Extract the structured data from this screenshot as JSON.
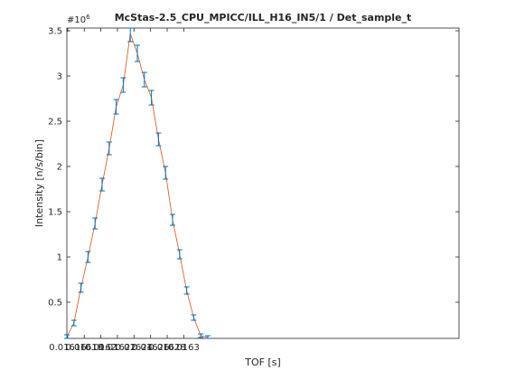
{
  "chart_data": {
    "type": "line",
    "title": "McStas-2.5_CPU_MPICC/ILL_H16_IN5/1 / Det_sample_t",
    "xlabel": "TOF [s]",
    "ylabel": "Intensity [n/s/bin]",
    "y_exponent_label": "#10",
    "y_exponent_power": "6",
    "y_scale": 1000000,
    "xlim": [
      0.016159,
      0.016632
    ],
    "ylim": [
      0.1,
      3.53
    ],
    "x_ticks": [
      0.01616,
      0.01618,
      0.0162,
      0.01622,
      0.01624,
      0.01626,
      0.01628,
      0.0163
    ],
    "x_tick_labels": [
      "0.01616",
      "0.01618",
      "0.0162",
      "0.01622",
      "0.01624",
      "0.01626",
      "0.01628",
      "0.0163"
    ],
    "y_ticks": [
      0.5,
      1,
      1.5,
      2,
      2.5,
      3,
      3.5
    ],
    "y_tick_labels": [
      "0.5",
      "1",
      "1.5",
      "2",
      "2.5",
      "3",
      "3.5"
    ],
    "grid": false,
    "box": true,
    "line_color": "#D95319",
    "errorbar_color": "#0072BD",
    "series": [
      {
        "x": [
          0.016159,
          0.0161675,
          0.016176,
          0.0161845,
          0.016193,
          0.0162015,
          0.01621,
          0.0162185,
          0.016227,
          0.0162355,
          0.016244,
          0.0162525,
          0.016261,
          0.0162695,
          0.016278,
          0.0162865,
          0.016295,
          0.0163035,
          0.016312,
          0.0163205,
          0.016329
        ],
        "y": [
          0.12,
          0.27,
          0.66,
          1.0,
          1.37,
          1.8,
          2.2,
          2.66,
          2.9,
          3.47,
          3.25,
          2.96,
          2.76,
          2.3,
          1.93,
          1.41,
          1.03,
          0.63,
          0.33,
          0.13,
          0.11
        ],
        "err": [
          0.02,
          0.03,
          0.05,
          0.06,
          0.06,
          0.07,
          0.07,
          0.08,
          0.08,
          0.09,
          0.09,
          0.08,
          0.08,
          0.07,
          0.07,
          0.06,
          0.05,
          0.04,
          0.03,
          0.02,
          0.02
        ]
      }
    ]
  }
}
